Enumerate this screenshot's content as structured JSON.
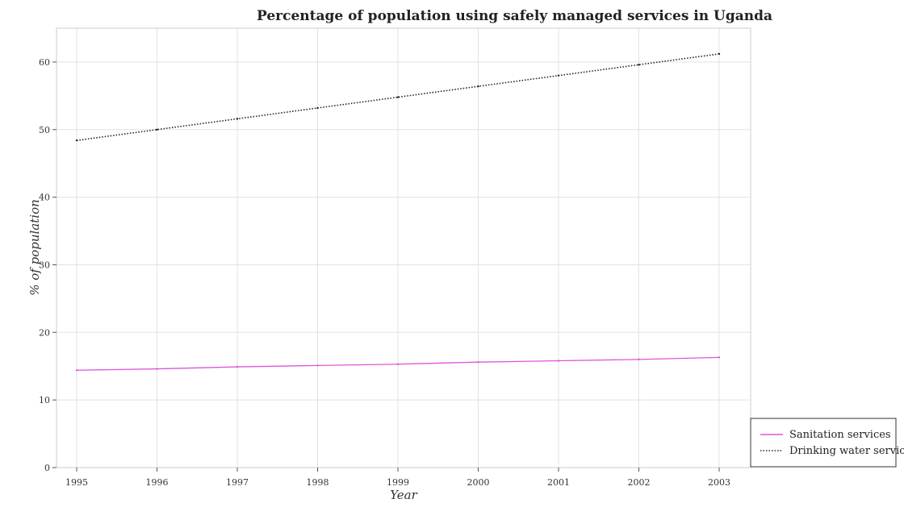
{
  "chart_data": {
    "type": "line",
    "title": "Percentage of population using safely managed services in Uganda",
    "xlabel": "Year",
    "ylabel": "% of population",
    "categories": [
      "1995",
      "1996",
      "1997",
      "1998",
      "1999",
      "2000",
      "2001",
      "2002",
      "2003"
    ],
    "ylim": [
      0,
      65
    ],
    "yticks": [
      "0",
      "10",
      "20",
      "30",
      "40",
      "50",
      "60"
    ],
    "grid": true,
    "legend_position": "bottom-right",
    "series": [
      {
        "name": "Sanitation services",
        "color": "#dd55dd",
        "dash": "solid",
        "values": [
          14.4,
          14.6,
          14.9,
          15.1,
          15.3,
          15.6,
          15.8,
          16.0,
          16.3
        ]
      },
      {
        "name": "Drinking water services",
        "color": "#222222",
        "dash": "dotted",
        "values": [
          48.4,
          50.0,
          51.6,
          53.2,
          54.8,
          56.4,
          58.0,
          59.6,
          61.2
        ]
      }
    ]
  }
}
